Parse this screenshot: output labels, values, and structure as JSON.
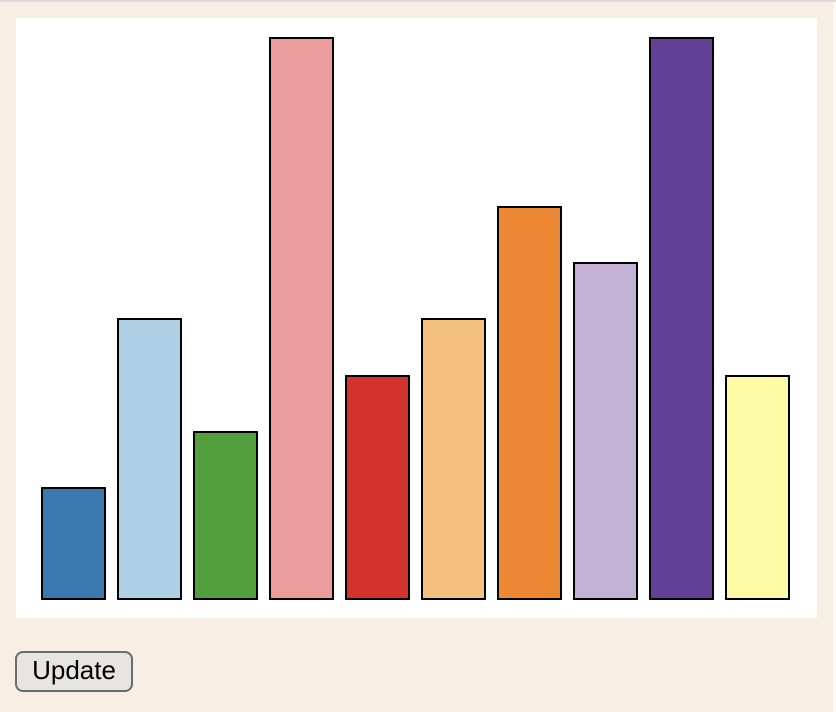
{
  "window": {
    "top_edge_color": "#dcdcdc",
    "background_color": "#f7eee4",
    "panel_background_color": "#ffffff"
  },
  "chart_data": {
    "type": "bar",
    "title": "",
    "xlabel": "",
    "ylabel": "",
    "bar_count": 10,
    "values": [
      20,
      50,
      30,
      100,
      40,
      50,
      70,
      60,
      100,
      40
    ],
    "ylim": [
      0,
      100
    ],
    "grid": false,
    "legend": false,
    "axes_visible": false,
    "bar_stroke_color": "#000000",
    "colors": [
      "#3b78ae",
      "#afcfe4",
      "#549f3d",
      "#eb9d9b",
      "#d2332d",
      "#f3c07e",
      "#ee8733",
      "#c3b2d5",
      "#614095",
      "#fdfaa6"
    ]
  },
  "controls": {
    "update_button_label": "Update"
  }
}
